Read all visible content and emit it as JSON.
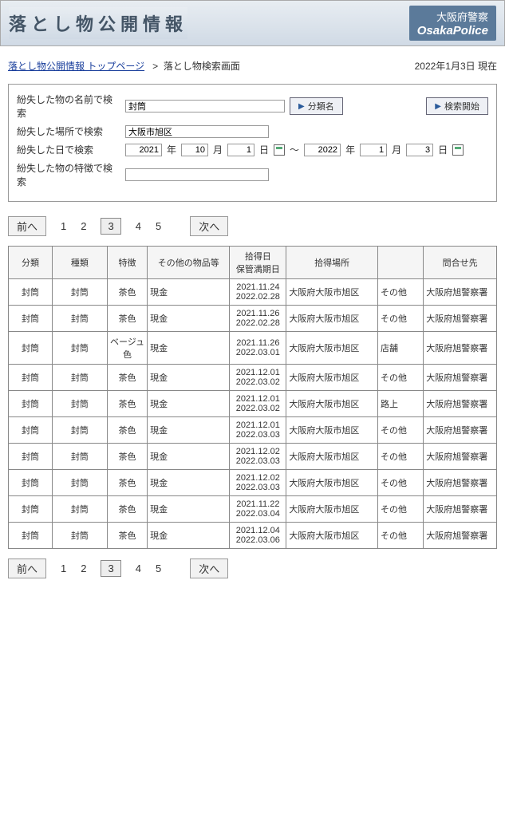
{
  "header": {
    "title": "落とし物公開情報",
    "org_jp": "大阪府警察",
    "org_en": "OsakaPolice"
  },
  "breadcrumb": {
    "top_link": "落とし物公開情報 トップページ",
    "separator": ">",
    "current": "落とし物検索画面",
    "asof": "2022年1月3日 現在"
  },
  "search": {
    "name_label": "紛失した物の名前で検索",
    "name_value": "封筒",
    "category_btn": "分類名",
    "start_btn": "検索開始",
    "place_label": "紛失した場所で検索",
    "place_value": "大阪市旭区",
    "date_label": "紛失した日で検索",
    "from_year": "2021",
    "from_month": "10",
    "from_day": "1",
    "to_year": "2022",
    "to_month": "1",
    "to_day": "3",
    "year_suffix": "年",
    "month_suffix": "月",
    "day_suffix": "日",
    "tilde": "～",
    "feature_label": "紛失した物の特徴で検索",
    "feature_value": ""
  },
  "pagination": {
    "prev": "前へ",
    "next": "次へ",
    "pages": [
      "1",
      "2",
      "3",
      "4",
      "5"
    ],
    "current": "3"
  },
  "table": {
    "headers": [
      "分類",
      "種類",
      "特徴",
      "その他の物品等",
      "拾得日\n保管満期日",
      "拾得場所",
      "",
      "問合せ先"
    ],
    "rows": [
      {
        "cat": "封筒",
        "type": "封筒",
        "feat": "茶色",
        "other": "現金",
        "date": "2021.11.24\n2022.02.28",
        "loc": "大阪府大阪市旭区",
        "found": "その他",
        "contact": "大阪府旭警察署"
      },
      {
        "cat": "封筒",
        "type": "封筒",
        "feat": "茶色",
        "other": "現金",
        "date": "2021.11.26\n2022.02.28",
        "loc": "大阪府大阪市旭区",
        "found": "その他",
        "contact": "大阪府旭警察署"
      },
      {
        "cat": "封筒",
        "type": "封筒",
        "feat": "ベージュ色",
        "other": "現金",
        "date": "2021.11.26\n2022.03.01",
        "loc": "大阪府大阪市旭区",
        "found": "店舗",
        "contact": "大阪府旭警察署"
      },
      {
        "cat": "封筒",
        "type": "封筒",
        "feat": "茶色",
        "other": "現金",
        "date": "2021.12.01\n2022.03.02",
        "loc": "大阪府大阪市旭区",
        "found": "その他",
        "contact": "大阪府旭警察署"
      },
      {
        "cat": "封筒",
        "type": "封筒",
        "feat": "茶色",
        "other": "現金",
        "date": "2021.12.01\n2022.03.02",
        "loc": "大阪府大阪市旭区",
        "found": "路上",
        "contact": "大阪府旭警察署"
      },
      {
        "cat": "封筒",
        "type": "封筒",
        "feat": "茶色",
        "other": "現金",
        "date": "2021.12.01\n2022.03.03",
        "loc": "大阪府大阪市旭区",
        "found": "その他",
        "contact": "大阪府旭警察署"
      },
      {
        "cat": "封筒",
        "type": "封筒",
        "feat": "茶色",
        "other": "現金",
        "date": "2021.12.02\n2022.03.03",
        "loc": "大阪府大阪市旭区",
        "found": "その他",
        "contact": "大阪府旭警察署"
      },
      {
        "cat": "封筒",
        "type": "封筒",
        "feat": "茶色",
        "other": "現金",
        "date": "2021.12.02\n2022.03.03",
        "loc": "大阪府大阪市旭区",
        "found": "その他",
        "contact": "大阪府旭警察署"
      },
      {
        "cat": "封筒",
        "type": "封筒",
        "feat": "茶色",
        "other": "現金",
        "date": "2021.11.22\n2022.03.04",
        "loc": "大阪府大阪市旭区",
        "found": "その他",
        "contact": "大阪府旭警察署"
      },
      {
        "cat": "封筒",
        "type": "封筒",
        "feat": "茶色",
        "other": "現金",
        "date": "2021.12.04\n2022.03.06",
        "loc": "大阪府大阪市旭区",
        "found": "その他",
        "contact": "大阪府旭警察署"
      }
    ]
  }
}
